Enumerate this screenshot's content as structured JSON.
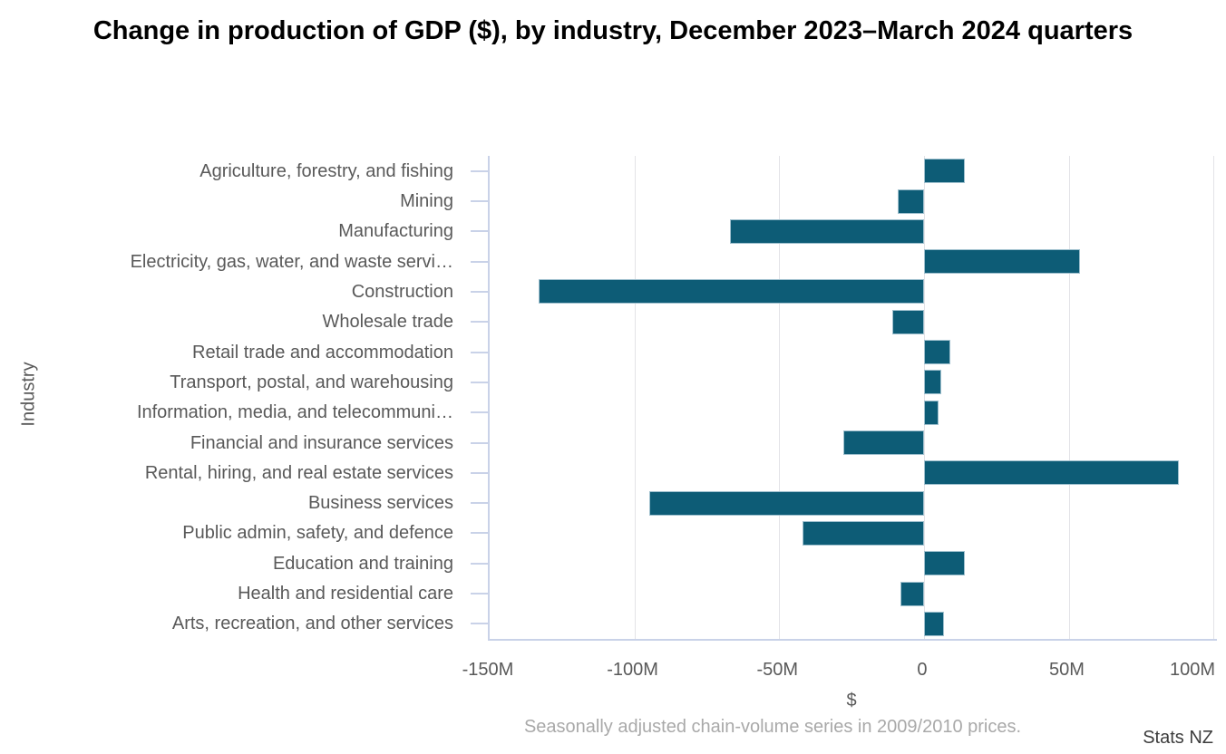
{
  "title": "Change in production of GDP ($), by industry, December 2023–March 2024 quarters",
  "caption": "Seasonally adjusted chain-volume series in 2009/2010 prices.",
  "source": "Stats NZ",
  "chart_data": {
    "type": "bar",
    "orientation": "horizontal",
    "title": "Change in production of GDP ($), by industry, December 2023–March 2024 quarters",
    "xlabel": "$",
    "ylabel": "Industry",
    "unit": "millions of dollars",
    "categories": [
      "Agriculture, forestry, and fishing",
      "Mining",
      "Manufacturing",
      "Electricity, gas, water, and waste servi…",
      "Construction",
      "Wholesale trade",
      "Retail trade and accommodation",
      "Transport, postal, and warehousing",
      "Information, media, and telecommuni…",
      "Financial and insurance services",
      "Rental, hiring, and real estate services",
      "Business services",
      "Public admin, safety, and defence",
      "Education and training",
      "Health and residential care",
      "Arts, recreation, and other services"
    ],
    "values": [
      14,
      -9,
      -67,
      54,
      -133,
      -11,
      9,
      6,
      5,
      -28,
      88,
      -95,
      -42,
      14,
      -8,
      7
    ],
    "xticks": [
      "-150M",
      "-100M",
      "-50M",
      "0",
      "50M",
      "100M"
    ],
    "xtick_values": [
      -150,
      -100,
      -50,
      0,
      50,
      100
    ],
    "xlim": [
      -150,
      101.2
    ],
    "grid": "vertical",
    "legend": "none",
    "bar_color": "#0d5c76",
    "axis_line_color": "#c9d2e8",
    "gridline_color": "#e3e3e7",
    "label_color": "#595959",
    "caption_color": "#a9a9a9"
  }
}
